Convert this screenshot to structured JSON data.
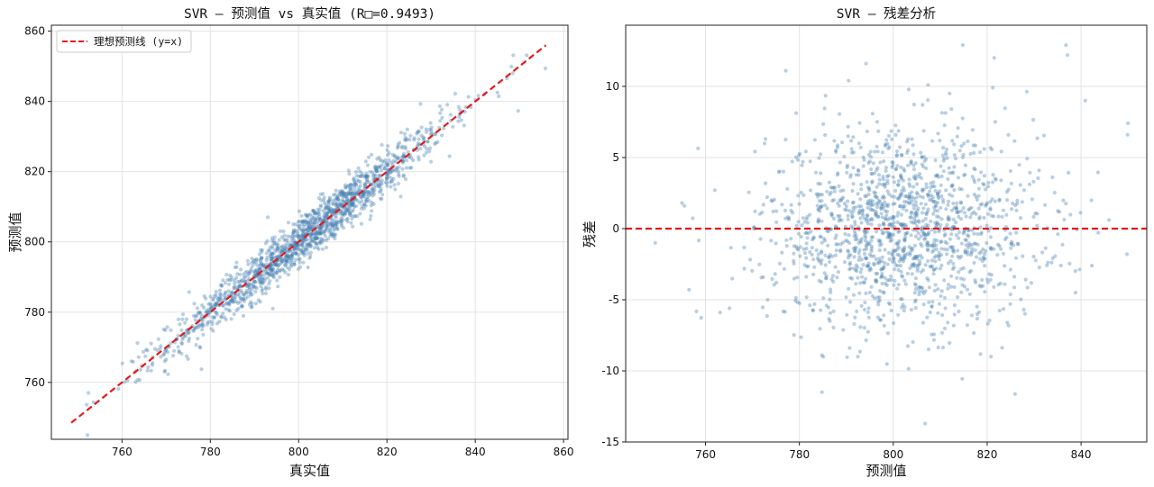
{
  "colors": {
    "points": "#4682b4",
    "ideal_line": "#e31a1c",
    "grid": "#e3e3e3",
    "axes": "#222222"
  },
  "chart_data": [
    {
      "type": "scatter",
      "title": "SVR — 预测值 vs 真实值 (R□=0.9493)",
      "xlabel": "真实值",
      "ylabel": "预测值",
      "xlim": [
        744,
        861
      ],
      "ylim": [
        743.8,
        861.7
      ],
      "xticks": [
        760,
        780,
        800,
        820,
        840,
        860
      ],
      "yticks": [
        760,
        780,
        800,
        820,
        840,
        860
      ],
      "grid": true,
      "legend": {
        "placement": "top-left",
        "entries": [
          "理想预测线 (y=x)"
        ]
      },
      "reference_line": {
        "name": "理想预测线 (y=x)",
        "x": [
          748.5,
          856
        ],
        "y": [
          748.5,
          856
        ]
      },
      "point_count": 1500,
      "points_sample": [
        [
          752.4,
          757.0
        ],
        [
          760.1,
          765.4
        ],
        [
          763.5,
          771.2
        ],
        [
          769.8,
          774.9
        ],
        [
          775.2,
          785.7
        ],
        [
          780.6,
          781.0
        ],
        [
          788.4,
          791.5
        ],
        [
          793.0,
          807.0
        ],
        [
          797.1,
          794.3
        ],
        [
          800.2,
          800.5
        ],
        [
          804.6,
          804.1
        ],
        [
          808.3,
          812.0
        ],
        [
          812.5,
          816.2
        ],
        [
          816.9,
          818.8
        ],
        [
          820.2,
          827.3
        ],
        [
          826.8,
          827.1
        ],
        [
          831.0,
          830.6
        ],
        [
          834.9,
          832.8
        ],
        [
          842.1,
          842.0
        ],
        [
          848.2,
          849.9
        ],
        [
          849.7,
          837.3
        ],
        [
          855.9,
          849.4
        ]
      ]
    },
    {
      "type": "scatter",
      "title": "SVR — 残差分析",
      "xlabel": "预测值",
      "ylabel": "残差",
      "xlim": [
        743,
        854
      ],
      "ylim": [
        -15.0,
        14.3
      ],
      "xticks": [
        760,
        780,
        800,
        820,
        840
      ],
      "yticks": [
        -15,
        -10,
        -5,
        0,
        5,
        10
      ],
      "grid": true,
      "reference_line": {
        "y": 0
      },
      "point_count": 1500,
      "points_sample": [
        [
          749.3,
          -1.0
        ],
        [
          755.0,
          1.8
        ],
        [
          756.5,
          -4.3
        ],
        [
          765.1,
          -5.6
        ],
        [
          777.1,
          11.1
        ],
        [
          784.8,
          -11.5
        ],
        [
          790.5,
          10.4
        ],
        [
          794.2,
          11.6
        ],
        [
          806.8,
          -13.7
        ],
        [
          814.8,
          12.9
        ],
        [
          821.5,
          12.0
        ],
        [
          836.8,
          12.9
        ],
        [
          837.1,
          12.2
        ],
        [
          840.9,
          9.0
        ],
        [
          842.3,
          -2.6
        ],
        [
          849.9,
          6.6
        ],
        [
          849.8,
          -1.8
        ]
      ]
    }
  ]
}
